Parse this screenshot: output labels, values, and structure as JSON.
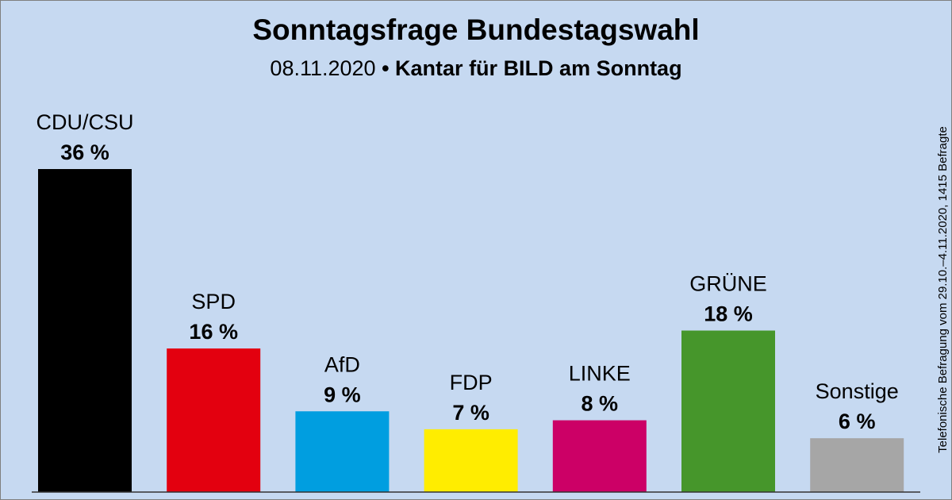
{
  "chart_data": {
    "type": "bar",
    "title": "Sonntagsfrage Bundestagswahl",
    "subtitle": [
      "08.11.2020",
      "•",
      "Kantar für BILD am Sonntag"
    ],
    "note": "Telefonische Befragung vom 29.10.–4.11.2020, 1415 Befragte",
    "categories": [
      "CDU/CSU",
      "SPD",
      "AfD",
      "FDP",
      "LINKE",
      "GRÜNE",
      "Sonstige"
    ],
    "values": [
      36,
      16,
      9,
      7,
      8,
      18,
      6
    ],
    "value_labels": [
      "36 %",
      "16 %",
      "9 %",
      "7 %",
      "8 %",
      "18 %",
      "6 %"
    ],
    "colors": [
      "#000000",
      "#e3000f",
      "#009ee0",
      "#ffed00",
      "#cc0066",
      "#46962b",
      "#a6a6a6"
    ]
  }
}
